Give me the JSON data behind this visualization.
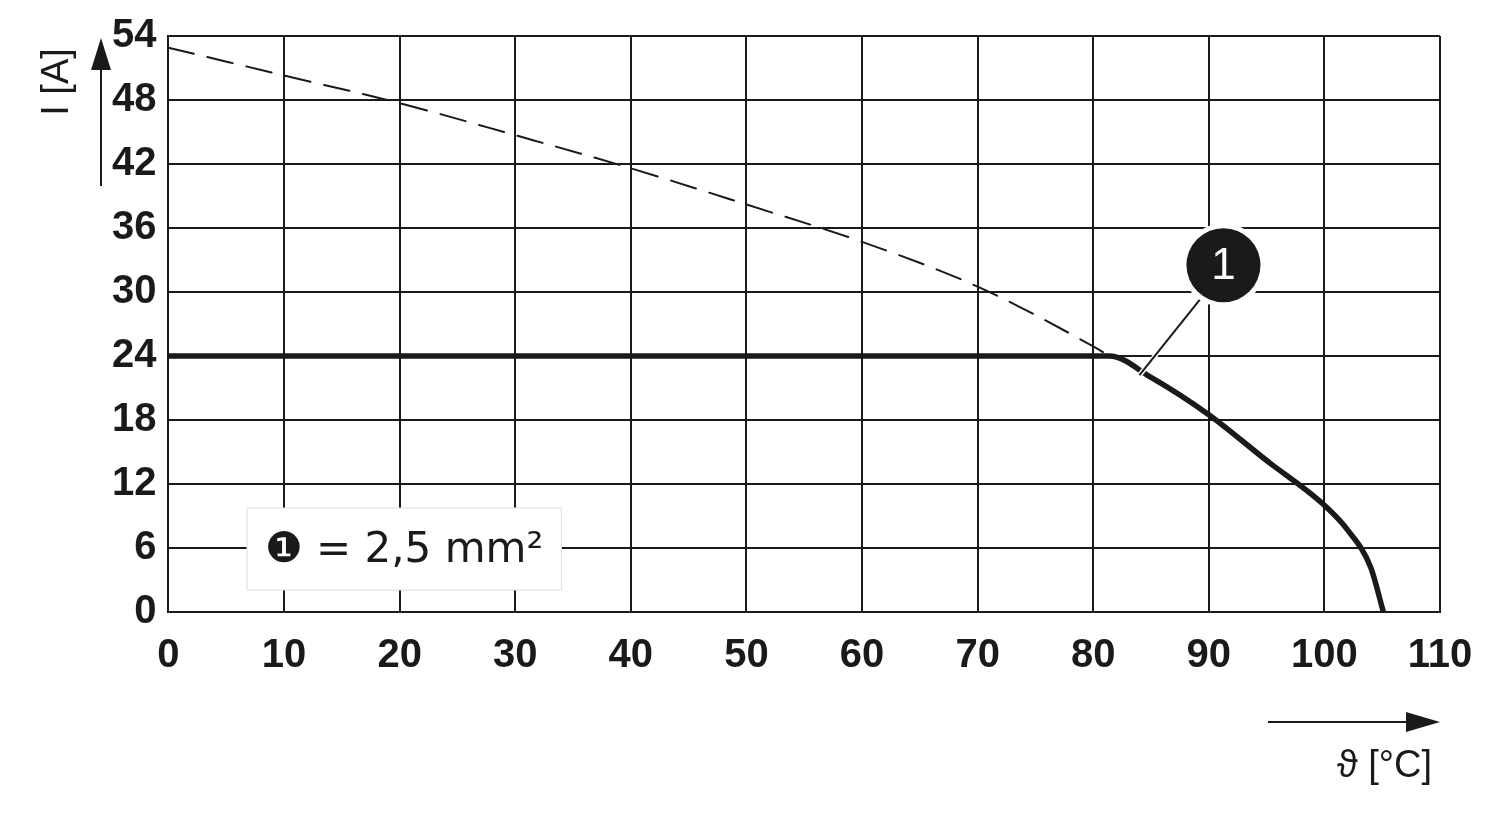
{
  "chart_data": {
    "type": "line",
    "xlabel": "ϑ [°C]",
    "ylabel": "I [A]",
    "xlim": [
      0,
      110
    ],
    "xticks": [
      0,
      10,
      20,
      30,
      40,
      50,
      60,
      70,
      80,
      90,
      100,
      110
    ],
    "ylim": [
      0,
      54
    ],
    "yticks": [
      0,
      6,
      12,
      18,
      24,
      30,
      36,
      42,
      48,
      54
    ],
    "grid": true,
    "legend": false,
    "marker": "none",
    "series": [
      {
        "color": "#1a1a1a",
        "line_style": "dashed",
        "x": [
          0,
          10,
          20,
          30,
          40,
          50,
          60,
          70,
          80,
          81.4
        ],
        "values": [
          52.9,
          50.3,
          47.7,
          44.7,
          41.6,
          38.2,
          34.7,
          30.5,
          24.9,
          24
        ]
      },
      {
        "color": "#1a1a1a",
        "line_style": "solid",
        "x": [
          0,
          81.4,
          85,
          90,
          95,
          100,
          102,
          104,
          105.1
        ],
        "values": [
          24,
          24,
          22,
          18.5,
          14.2,
          10,
          7.7,
          4.2,
          0
        ]
      }
    ],
    "annotations": [
      {
        "text": "1",
        "x": 84,
        "y": 22.2
      },
      "❶ = 2,5 mm²"
    ]
  }
}
